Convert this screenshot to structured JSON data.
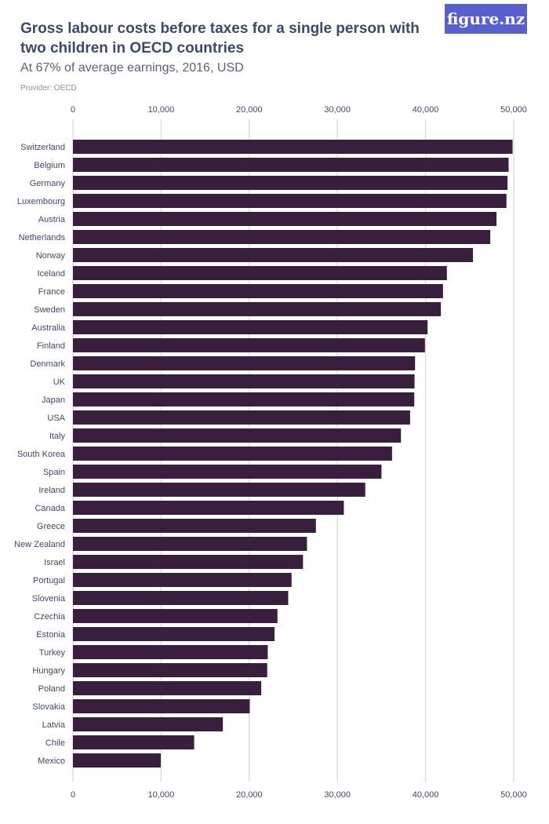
{
  "header": {
    "title": "Gross labour costs before taxes for a single person with two children in OECD countries",
    "subtitle": "At 67% of average earnings, 2016, USD",
    "provider": "Provider: OECD",
    "logo": "figure.nz"
  },
  "colors": {
    "bar": "#371f3d",
    "grid": "#dddddd",
    "text": "#3d4a66",
    "logo_bg": "#5a5fd0"
  },
  "chart_data": {
    "type": "bar",
    "orientation": "horizontal",
    "title": "Gross labour costs before taxes for a single person with two children in OECD countries",
    "subtitle": "At 67% of average earnings, 2016, USD",
    "xlim": [
      0,
      50000
    ],
    "xticks": [
      "0",
      "10,000",
      "20,000",
      "30,000",
      "40,000",
      "50,000"
    ],
    "grid": true,
    "categories": [
      "Switzerland",
      "Belgium",
      "Germany",
      "Luxembourg",
      "Austria",
      "Netherlands",
      "Norway",
      "Iceland",
      "France",
      "Sweden",
      "Australia",
      "Finland",
      "Denmark",
      "UK",
      "Japan",
      "USA",
      "Italy",
      "South Korea",
      "Spain",
      "Ireland",
      "Canada",
      "Greece",
      "New Zealand",
      "Israel",
      "Portugal",
      "Slovenia",
      "Czechia",
      "Estonia",
      "Turkey",
      "Hungary",
      "Poland",
      "Slovakia",
      "Latvia",
      "Chile",
      "Mexico"
    ],
    "values": [
      49870,
      49420,
      49300,
      49180,
      48050,
      47340,
      45380,
      42420,
      41980,
      41740,
      40230,
      39930,
      38810,
      38750,
      38720,
      38250,
      37210,
      36200,
      35000,
      33160,
      30730,
      27560,
      26550,
      26100,
      24800,
      24420,
      23200,
      22870,
      22100,
      22040,
      21360,
      20060,
      17010,
      13750,
      9960
    ]
  }
}
